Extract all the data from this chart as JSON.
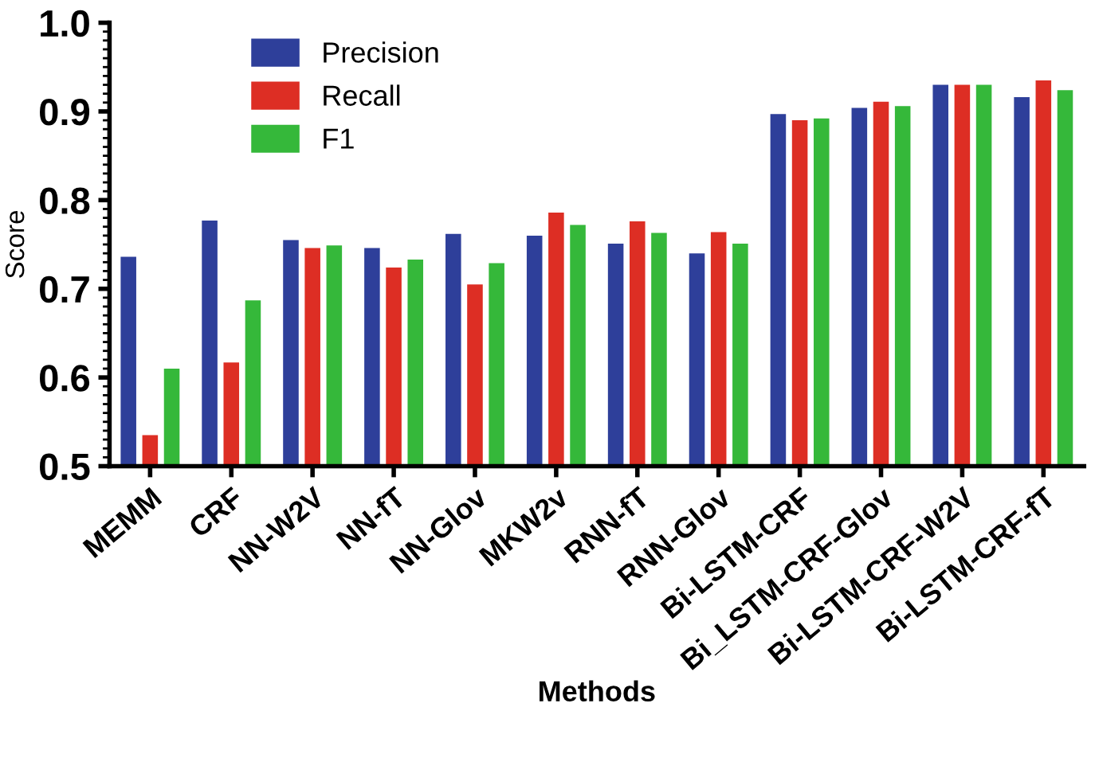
{
  "chart_data": {
    "type": "bar",
    "xlabel": "Methods",
    "ylabel": "Score",
    "categories": [
      "MEMM",
      "CRF",
      "NN-W2V",
      "NN-fT",
      "NN-Glov",
      "MKW2v",
      "RNN-fT",
      "RNN-Glov",
      "Bi-LSTM-CRF",
      "Bi_LSTM-CRF-Glov",
      "Bi-LSTM-CRF-W2V",
      "Bi-LSTM-CRF-fT"
    ],
    "series": [
      {
        "name": "Precision",
        "color": "#2e3f9a",
        "values": [
          0.736,
          0.777,
          0.755,
          0.746,
          0.762,
          0.76,
          0.751,
          0.74,
          0.897,
          0.904,
          0.93,
          0.916
        ]
      },
      {
        "name": "Recall",
        "color": "#dd2e24",
        "values": [
          0.535,
          0.617,
          0.746,
          0.724,
          0.705,
          0.786,
          0.776,
          0.764,
          0.89,
          0.911,
          0.93,
          0.935
        ]
      },
      {
        "name": "F1",
        "color": "#35b83a",
        "values": [
          0.61,
          0.687,
          0.749,
          0.733,
          0.729,
          0.772,
          0.763,
          0.751,
          0.892,
          0.906,
          0.93,
          0.924
        ]
      }
    ],
    "ylim": [
      0.5,
      1.0
    ],
    "yticks": [
      0.5,
      0.6,
      0.7,
      0.8,
      0.9,
      {
        "value": 1.0,
        "label": "1.0"
      }
    ],
    "grid": false,
    "legend": "top left"
  }
}
